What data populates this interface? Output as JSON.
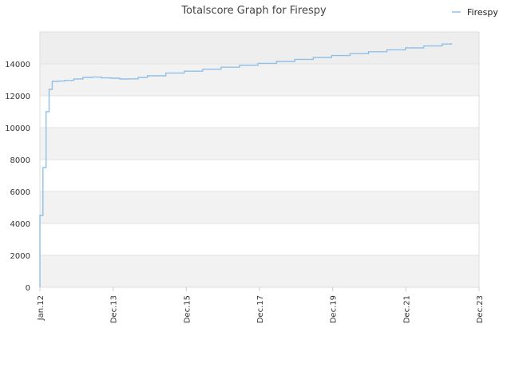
{
  "chart_data": {
    "type": "line",
    "title": "Totalscore Graph for Firespy",
    "xlabel": "",
    "ylabel": "",
    "x_ticks": [
      "Jan.12",
      "Dec.13",
      "Dec.15",
      "Dec.17",
      "Dec.19",
      "Dec.21",
      "Dec.23"
    ],
    "y_ticks": [
      0,
      2000,
      4000,
      6000,
      8000,
      10000,
      12000,
      14000
    ],
    "xlim": [
      "2012-01",
      "2023-12"
    ],
    "ylim": [
      0,
      16000
    ],
    "grid": true,
    "legend_position": "top-right",
    "series": [
      {
        "name": "Firespy",
        "color": "#90c0e8",
        "x": [
          "2012-01",
          "2012-01",
          "2012-01",
          "2012-02",
          "2012-02",
          "2012-03",
          "2012-03",
          "2012-03",
          "2012-04",
          "2012-04",
          "2012-05",
          "2012-05",
          "2012-06",
          "2012-07",
          "2012-09",
          "2012-12",
          "2013-03",
          "2013-06",
          "2013-09",
          "2013-12",
          "2014-03",
          "2014-06",
          "2014-09",
          "2014-12",
          "2015-06",
          "2015-12",
          "2016-06",
          "2016-12",
          "2017-06",
          "2017-12",
          "2018-06",
          "2018-12",
          "2019-06",
          "2019-12",
          "2020-06",
          "2020-12",
          "2021-06",
          "2021-12",
          "2022-06",
          "2022-12",
          "2023-03"
        ],
        "y": [
          0,
          2500,
          4500,
          5600,
          7500,
          8800,
          10200,
          11000,
          11800,
          12400,
          12800,
          12900,
          12900,
          12920,
          12960,
          13050,
          13150,
          13170,
          13120,
          13100,
          13050,
          13060,
          13150,
          13250,
          13420,
          13540,
          13660,
          13790,
          13910,
          14030,
          14150,
          14280,
          14400,
          14520,
          14640,
          14760,
          14880,
          15000,
          15120,
          15240,
          15300
        ]
      }
    ]
  }
}
